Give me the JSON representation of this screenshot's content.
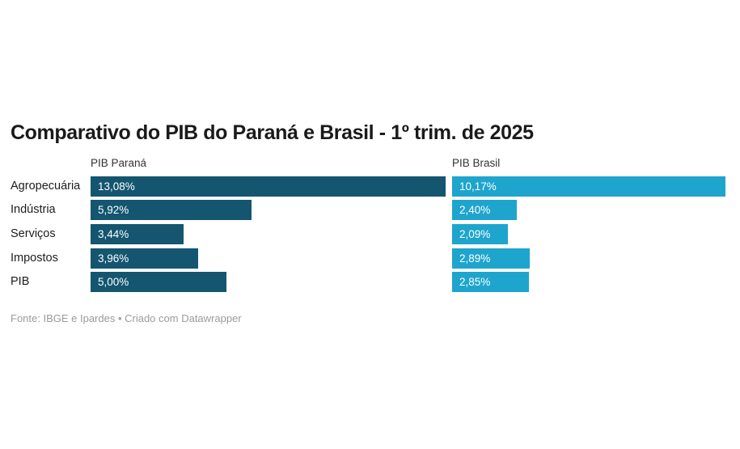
{
  "page": {
    "background_color": "#ffffff",
    "title_color": "#1a1a1a",
    "label_color": "#1d1d1d",
    "header_color": "#333333",
    "footer_color": "#9b9b9b"
  },
  "chart_data": {
    "type": "bar",
    "layout": "split-bars-horizontal",
    "title": "Comparativo do PIB do Paraná e Brasil - 1º trim. de 2025",
    "categories": [
      "Agropecuária",
      "Indústria",
      "Serviços",
      "Impostos",
      "PIB"
    ],
    "series": [
      {
        "name": "PIB Paraná",
        "values": [
          13.08,
          5.92,
          3.44,
          3.96,
          5.0
        ],
        "labels": [
          "13,08%",
          "5,92%",
          "3,44%",
          "3,96%",
          "5,00%"
        ],
        "color": "#145570"
      },
      {
        "name": "PIB Brasil",
        "values": [
          10.17,
          2.4,
          2.09,
          2.89,
          2.85
        ],
        "labels": [
          "10,17%",
          "2,40%",
          "2,09%",
          "2,89%",
          "2,85%"
        ],
        "color": "#1ea5cd"
      }
    ],
    "value_suffix": "%",
    "value_labels_inside_bars": true,
    "grid": false,
    "axis_ticks": "none",
    "legend_position": "column-headers",
    "footer": "Fonte: IBGE e Ipardes • Criado com Datawrapper"
  }
}
